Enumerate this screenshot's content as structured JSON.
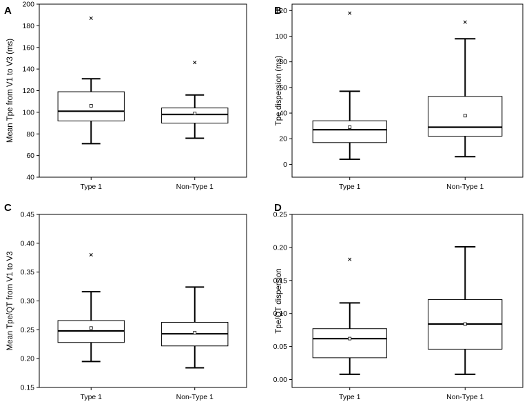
{
  "chart_data": [
    {
      "panel": "A",
      "type": "box",
      "ylabel": "Mean Tpe from V1 to V3 (ms)",
      "ylim": [
        40,
        200
      ],
      "yticks": [
        40,
        60,
        80,
        100,
        120,
        140,
        160,
        180,
        200
      ],
      "categories": [
        "Type 1",
        "Non-Type 1"
      ],
      "boxes": [
        {
          "name": "Type 1",
          "whisker_low": 71,
          "q1": 92,
          "median": 101,
          "q3": 119,
          "whisker_high": 131,
          "mean": 106,
          "outliers": [
            187
          ]
        },
        {
          "name": "Non-Type 1",
          "whisker_low": 76,
          "q1": 90,
          "median": 98,
          "q3": 104,
          "whisker_high": 116,
          "mean": 99,
          "outliers": [
            146
          ]
        }
      ]
    },
    {
      "panel": "B",
      "type": "box",
      "ylabel": "Tpe dispersion (ms)",
      "ylim": [
        -10,
        125
      ],
      "yticks": [
        0,
        20,
        40,
        60,
        80,
        100,
        120
      ],
      "categories": [
        "Type 1",
        "Non-Type 1"
      ],
      "boxes": [
        {
          "name": "Type 1",
          "whisker_low": 4,
          "q1": 17,
          "median": 27,
          "q3": 34,
          "whisker_high": 57,
          "mean": 29,
          "outliers": [
            118
          ]
        },
        {
          "name": "Non-Type 1",
          "whisker_low": 6,
          "q1": 22,
          "median": 29,
          "q3": 53,
          "whisker_high": 98,
          "mean": 38,
          "outliers": [
            111
          ]
        }
      ]
    },
    {
      "panel": "C",
      "type": "box",
      "ylabel": "Mean Tpe/QT from V1 to V3",
      "ylim": [
        0.15,
        0.45
      ],
      "yticks": [
        "0.15",
        "0.20",
        "0.25",
        "0.30",
        "0.35",
        "0.40",
        "0.45"
      ],
      "categories": [
        "Type 1",
        "Non-Type 1"
      ],
      "boxes": [
        {
          "name": "Type 1",
          "whisker_low": 0.195,
          "q1": 0.228,
          "median": 0.248,
          "q3": 0.266,
          "whisker_high": 0.316,
          "mean": 0.253,
          "outliers": [
            0.38
          ]
        },
        {
          "name": "Non-Type 1",
          "whisker_low": 0.184,
          "q1": 0.222,
          "median": 0.243,
          "q3": 0.263,
          "whisker_high": 0.324,
          "mean": 0.245,
          "outliers": []
        }
      ]
    },
    {
      "panel": "D",
      "type": "box",
      "ylabel": "Tpe/QT dispersion",
      "ylim": [
        -0.012,
        0.25
      ],
      "yticks": [
        "0.00",
        "0.05",
        "0.10",
        "0.15",
        "0.20",
        "0.25"
      ],
      "categories": [
        "Type 1",
        "Non-Type 1"
      ],
      "boxes": [
        {
          "name": "Type 1",
          "whisker_low": 0.008,
          "q1": 0.033,
          "median": 0.062,
          "q3": 0.077,
          "whisker_high": 0.116,
          "mean": 0.062,
          "outliers": [
            0.182
          ]
        },
        {
          "name": "Non-Type 1",
          "whisker_low": 0.008,
          "q1": 0.046,
          "median": 0.084,
          "q3": 0.121,
          "whisker_high": 0.201,
          "mean": 0.084,
          "outliers": []
        }
      ]
    }
  ]
}
